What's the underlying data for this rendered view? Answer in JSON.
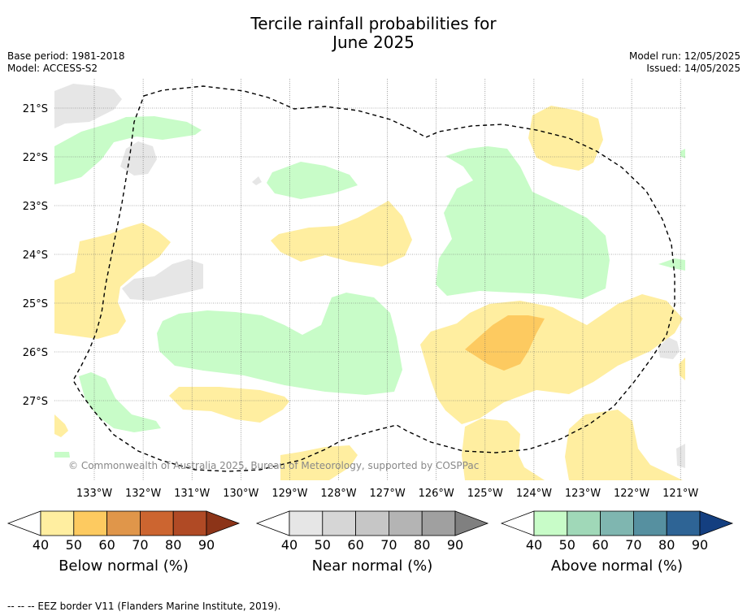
{
  "title": {
    "line1": "Tercile rainfall probabilities for",
    "line2": "June 2025"
  },
  "meta": {
    "base_period": "Base period: 1981-2018",
    "model": "Model: ACCESS-S2",
    "model_run": "Model run: 12/05/2025",
    "issued": "Issued: 14/05/2025"
  },
  "map": {
    "lat_labels": [
      "21°S",
      "22°S",
      "23°S",
      "24°S",
      "25°S",
      "26°S",
      "27°S"
    ],
    "lon_labels": [
      "133°W",
      "132°W",
      "131°W",
      "130°W",
      "129°W",
      "128°W",
      "127°W",
      "126°W",
      "125°W",
      "124°W",
      "123°W",
      "122°W",
      "121°W"
    ],
    "copyright": "© Commonwealth of Australia 2025, Bureau of Meteorology, supported by COSPPac"
  },
  "colorbars": [
    {
      "label": "Below normal (%)",
      "ticks": [
        "40",
        "50",
        "60",
        "70",
        "80",
        "90"
      ],
      "colors": [
        "#ffeea0",
        "#fdca60",
        "#e0964a",
        "#cc6530",
        "#b04a25",
        "#8c3418"
      ]
    },
    {
      "label": "Near normal (%)",
      "ticks": [
        "40",
        "50",
        "60",
        "70",
        "80",
        "90"
      ],
      "colors": [
        "#e6e6e6",
        "#d6d6d6",
        "#c6c6c6",
        "#b4b4b4",
        "#a0a0a0",
        "#808080"
      ]
    },
    {
      "label": "Above normal (%)",
      "ticks": [
        "40",
        "50",
        "60",
        "70",
        "80",
        "90"
      ],
      "colors": [
        "#c8fcc8",
        "#a0d8b8",
        "#7fb6b0",
        "#5690a0",
        "#2e6495",
        "#143f80"
      ]
    }
  ],
  "footnote": "--  --  -- EEZ border V11 (Flanders Marine Institute, 2019).",
  "colors": {
    "grid": "#666666",
    "eez": "#000000"
  }
}
